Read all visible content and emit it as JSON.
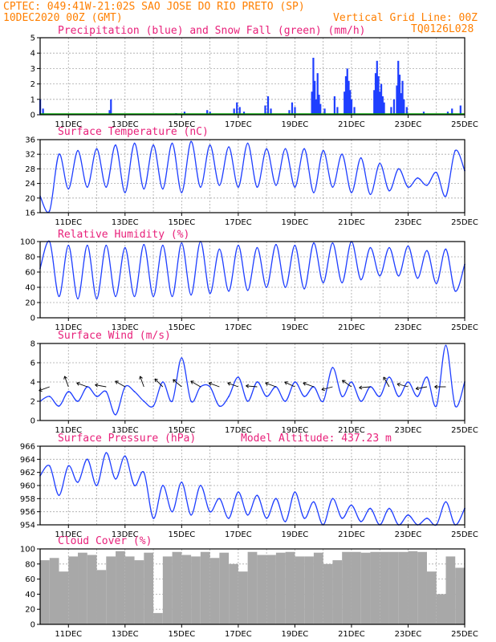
{
  "header": {
    "line1": "CPTEC:   049:41W-21:02S  SAO JOSE DO RIO PRETO (SP)",
    "line2_left": "10DEC2020 00Z (GMT)",
    "line2_right": "Vertical Grid Line: 00Z",
    "line3_right": "TQ0126L028"
  },
  "x_axis": {
    "start_day": 10,
    "end_day": 25,
    "tick_days": [
      11,
      13,
      15,
      17,
      19,
      21,
      23,
      25
    ],
    "tick_labels": [
      "11DEC",
      "13DEC",
      "15DEC",
      "17DEC",
      "19DEC",
      "21DEC",
      "23DEC",
      "25DEC"
    ]
  },
  "chart_data": [
    {
      "type": "bar",
      "title": "Precipitation (blue) and Snow Fall (green) (mm/h)",
      "ylim": [
        0,
        5
      ],
      "yticks": [
        "0",
        "1",
        "2",
        "3",
        "4",
        "5"
      ],
      "series": [
        {
          "name": "Precipitation",
          "color": "#1f3fff",
          "points": [
            [
              10.0,
              1.0
            ],
            [
              10.1,
              0.4
            ],
            [
              12.45,
              0.3
            ],
            [
              12.5,
              1.0
            ],
            [
              14.8,
              0.1
            ],
            [
              15.1,
              0.2
            ],
            [
              15.9,
              0.3
            ],
            [
              16.0,
              0.2
            ],
            [
              16.85,
              0.4
            ],
            [
              16.95,
              0.8
            ],
            [
              17.05,
              0.5
            ],
            [
              17.2,
              0.2
            ],
            [
              17.95,
              0.6
            ],
            [
              18.05,
              1.2
            ],
            [
              18.15,
              0.4
            ],
            [
              18.8,
              0.3
            ],
            [
              18.9,
              0.8
            ],
            [
              19.0,
              0.5
            ],
            [
              19.6,
              1.5
            ],
            [
              19.65,
              3.7
            ],
            [
              19.7,
              2.2
            ],
            [
              19.75,
              1.0
            ],
            [
              19.8,
              2.7
            ],
            [
              19.85,
              1.3
            ],
            [
              19.9,
              0.7
            ],
            [
              20.05,
              0.4
            ],
            [
              20.4,
              1.2
            ],
            [
              20.5,
              0.5
            ],
            [
              20.75,
              1.5
            ],
            [
              20.8,
              2.5
            ],
            [
              20.85,
              3.0
            ],
            [
              20.9,
              2.2
            ],
            [
              20.95,
              1.6
            ],
            [
              21.0,
              1.0
            ],
            [
              21.1,
              0.5
            ],
            [
              21.8,
              1.6
            ],
            [
              21.85,
              2.7
            ],
            [
              21.9,
              3.5
            ],
            [
              21.95,
              2.5
            ],
            [
              22.0,
              1.5
            ],
            [
              22.05,
              2.0
            ],
            [
              22.1,
              1.2
            ],
            [
              22.15,
              0.8
            ],
            [
              22.4,
              0.5
            ],
            [
              22.5,
              1.0
            ],
            [
              22.6,
              1.9
            ],
            [
              22.65,
              3.5
            ],
            [
              22.7,
              2.6
            ],
            [
              22.75,
              1.4
            ],
            [
              22.8,
              2.2
            ],
            [
              22.85,
              1.0
            ],
            [
              22.95,
              0.5
            ],
            [
              23.55,
              0.2
            ],
            [
              24.4,
              0.2
            ],
            [
              24.55,
              0.4
            ],
            [
              24.85,
              0.6
            ]
          ]
        },
        {
          "name": "Snow Fall",
          "color": "#00a000",
          "points": []
        }
      ]
    },
    {
      "type": "line",
      "title": "Surface Temperature (nC)",
      "ylim": [
        16,
        36
      ],
      "yticks": [
        "16",
        "20",
        "24",
        "28",
        "32",
        "36"
      ],
      "series": [
        {
          "name": "Surface Temperature",
          "color": "#1f3fff",
          "period_values": [
            20.5,
            16.5,
            32.0,
            22.5,
            33.0,
            23.0,
            33.5,
            23.0,
            34.5,
            21.5,
            35.0,
            22.5,
            34.5,
            22.5,
            35.0,
            21.5,
            35.5,
            23.0,
            34.5,
            23.5,
            34.0,
            23.0,
            35.0,
            23.0,
            33.5,
            23.5,
            33.5,
            23.0,
            33.5,
            21.5,
            33.0,
            23.0,
            32.0,
            21.5,
            31.0,
            21.0,
            29.5,
            22.0,
            28.0,
            23.0,
            25.5,
            23.5,
            27.0,
            20.5,
            33.0,
            27.5
          ]
        }
      ]
    },
    {
      "type": "line",
      "title": "Relative Humidity (%)",
      "ylim": [
        0,
        100
      ],
      "yticks": [
        "0",
        "20",
        "40",
        "60",
        "80",
        "100"
      ],
      "series": [
        {
          "name": "Relative Humidity",
          "color": "#1f3fff",
          "period_values": [
            65,
            100,
            28,
            95,
            25,
            95,
            25,
            95,
            28,
            92,
            28,
            96,
            28,
            95,
            28,
            98,
            30,
            100,
            32,
            90,
            35,
            95,
            36,
            92,
            40,
            96,
            40,
            95,
            38,
            98,
            46,
            98,
            46,
            100,
            50,
            92,
            55,
            92,
            55,
            94,
            52,
            88,
            45,
            90,
            35,
            70
          ]
        }
      ]
    },
    {
      "type": "line",
      "title": "Surface Wind (m/s)",
      "ylim": [
        0,
        8
      ],
      "yticks": [
        "0",
        "2",
        "4",
        "6",
        "8"
      ],
      "series": [
        {
          "name": "Surface Wind",
          "color": "#1f3fff",
          "period_values": [
            2.0,
            2.5,
            1.5,
            3.0,
            2.0,
            3.5,
            2.5,
            3.0,
            0.6,
            3.5,
            3.0,
            2.0,
            1.5,
            4.0,
            2.0,
            6.5,
            2.0,
            3.5,
            3.5,
            1.5,
            2.5,
            4.5,
            2.0,
            4.0,
            2.5,
            3.5,
            2.0,
            4.0,
            2.5,
            3.5,
            2.0,
            5.5,
            2.5,
            4.0,
            2.0,
            3.5,
            2.5,
            4.5,
            2.5,
            4.0,
            2.5,
            4.5,
            1.5,
            7.8,
            1.5,
            4.0
          ]
        }
      ]
    },
    {
      "type": "line",
      "title": "Surface Pressure (hPa)",
      "annotation": "Model Altitude: 437.23 m",
      "ylim": [
        954,
        966
      ],
      "yticks": [
        "954",
        "956",
        "958",
        "960",
        "962",
        "964",
        "966"
      ],
      "series": [
        {
          "name": "Surface Pressure",
          "color": "#1f3fff",
          "period_values": [
            961.5,
            963.0,
            958.5,
            963.0,
            960.5,
            964.0,
            960.0,
            965.0,
            961.0,
            964.5,
            960.0,
            962.0,
            955.0,
            960.0,
            956.0,
            960.5,
            955.5,
            960.0,
            956.0,
            958.0,
            955.0,
            959.0,
            955.5,
            958.5,
            955.0,
            958.0,
            954.5,
            959.0,
            955.0,
            957.5,
            954.0,
            958.0,
            955.0,
            957.0,
            954.5,
            956.5,
            954.0,
            956.5,
            954.0,
            955.5,
            954.0,
            955.0,
            954.0,
            957.5,
            954.0,
            956.5
          ]
        }
      ]
    },
    {
      "type": "area",
      "title": "Cloud Cover (%)",
      "ylim": [
        0,
        100
      ],
      "yticks": [
        "0",
        "20",
        "40",
        "60",
        "80",
        "100"
      ],
      "series": [
        {
          "name": "Cloud Cover",
          "color": "#a8a8a8",
          "period_values": [
            85,
            88,
            70,
            90,
            95,
            92,
            72,
            90,
            97,
            90,
            85,
            95,
            15,
            90,
            96,
            92,
            90,
            96,
            88,
            95,
            80,
            70,
            96,
            92,
            92,
            95,
            96,
            90,
            90,
            95,
            80,
            85,
            96,
            96,
            95,
            96,
            96,
            96,
            96,
            97,
            96,
            70,
            40,
            90,
            75,
            90
          ]
        }
      ]
    }
  ]
}
